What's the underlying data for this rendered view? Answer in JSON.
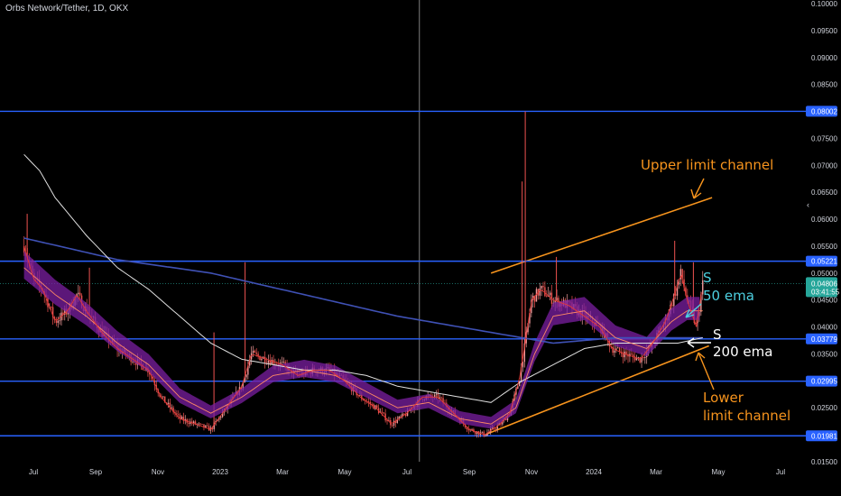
{
  "header": {
    "title": "Orbs Network/Tether, 1D, OKX"
  },
  "chart_data": {
    "type": "candlestick",
    "title": "Orbs Network/Tether, 1D, OKX",
    "ylim": [
      0.015,
      0.1
    ],
    "price_ticks": [
      "0.10000",
      "0.09500",
      "0.09000",
      "0.08500",
      "0.08000",
      "0.07500",
      "0.07000",
      "0.06500",
      "0.06000",
      "0.05500",
      "0.05000",
      "0.04500",
      "0.04000",
      "0.03500",
      "0.03000",
      "0.02500",
      "0.02000",
      "0.01500"
    ],
    "time_ticks": [
      {
        "label": "Jul",
        "t": 0.3
      },
      {
        "label": "Sep",
        "t": 2.3
      },
      {
        "label": "Nov",
        "t": 4.3
      },
      {
        "label": "2023",
        "t": 6.3
      },
      {
        "label": "Mar",
        "t": 8.3
      },
      {
        "label": "May",
        "t": 10.3
      },
      {
        "label": "Jul",
        "t": 12.3
      },
      {
        "label": "Sep",
        "t": 14.3
      },
      {
        "label": "Nov",
        "t": 16.3
      },
      {
        "label": "2024",
        "t": 18.3
      },
      {
        "label": "Mar",
        "t": 20.3
      },
      {
        "label": "May",
        "t": 22.3
      },
      {
        "label": "Jul",
        "t": 24.3
      }
    ],
    "horizontal_levels": [
      {
        "price": 0.08002,
        "label": "0.08002",
        "color": "#2962ff"
      },
      {
        "price": 0.05221,
        "label": "0.05221",
        "color": "#2962ff"
      },
      {
        "price": 0.03779,
        "label": "0.03779",
        "color": "#2962ff"
      },
      {
        "price": 0.02995,
        "label": "0.02995",
        "color": "#2962ff"
      },
      {
        "price": 0.01981,
        "label": "0.01981",
        "color": "#2962ff"
      }
    ],
    "current_price": {
      "price": 0.04806,
      "label": "0.04806",
      "countdown": "03:41:55",
      "color": "#26a69a"
    },
    "price_path": [
      [
        0,
        0.055
      ],
      [
        0.3,
        0.049
      ],
      [
        0.6,
        0.047
      ],
      [
        1.0,
        0.041
      ],
      [
        1.4,
        0.043
      ],
      [
        1.7,
        0.046
      ],
      [
        2.0,
        0.043
      ],
      [
        2.5,
        0.039
      ],
      [
        3.0,
        0.036
      ],
      [
        3.5,
        0.034
      ],
      [
        4.0,
        0.032
      ],
      [
        4.4,
        0.027
      ],
      [
        5.0,
        0.023
      ],
      [
        5.5,
        0.022
      ],
      [
        6.0,
        0.021
      ],
      [
        6.5,
        0.025
      ],
      [
        7.0,
        0.029
      ],
      [
        7.3,
        0.035
      ],
      [
        7.8,
        0.034
      ],
      [
        8.3,
        0.033
      ],
      [
        8.8,
        0.031
      ],
      [
        9.3,
        0.032
      ],
      [
        9.8,
        0.032
      ],
      [
        10.3,
        0.03
      ],
      [
        10.8,
        0.027
      ],
      [
        11.3,
        0.025
      ],
      [
        11.8,
        0.022
      ],
      [
        12.3,
        0.024
      ],
      [
        12.8,
        0.027
      ],
      [
        13.3,
        0.027
      ],
      [
        13.8,
        0.024
      ],
      [
        14.3,
        0.021
      ],
      [
        14.8,
        0.02
      ],
      [
        15.3,
        0.022
      ],
      [
        15.6,
        0.024
      ],
      [
        15.9,
        0.03
      ],
      [
        16.1,
        0.037
      ],
      [
        16.3,
        0.045
      ],
      [
        16.6,
        0.047
      ],
      [
        17.0,
        0.045
      ],
      [
        17.5,
        0.044
      ],
      [
        18.0,
        0.042
      ],
      [
        18.5,
        0.04
      ],
      [
        18.9,
        0.036
      ],
      [
        19.3,
        0.035
      ],
      [
        19.8,
        0.034
      ],
      [
        20.2,
        0.037
      ],
      [
        20.6,
        0.041
      ],
      [
        20.9,
        0.046
      ],
      [
        21.1,
        0.05
      ],
      [
        21.3,
        0.045
      ],
      [
        21.6,
        0.04
      ],
      [
        21.8,
        0.048
      ]
    ],
    "spikes": [
      {
        "t": 0.1,
        "high": 0.061
      },
      {
        "t": 2.1,
        "high": 0.051
      },
      {
        "t": 6.1,
        "high": 0.039
      },
      {
        "t": 7.1,
        "high": 0.052
      },
      {
        "t": 16.1,
        "high": 0.08
      },
      {
        "t": 16.0,
        "high": 0.067
      },
      {
        "t": 17.1,
        "high": 0.053
      },
      {
        "t": 20.9,
        "high": 0.056
      },
      {
        "t": 21.5,
        "high": 0.052
      }
    ],
    "ema50_path": [
      [
        0,
        0.051
      ],
      [
        1.0,
        0.046
      ],
      [
        2.0,
        0.042
      ],
      [
        3.0,
        0.037
      ],
      [
        4.0,
        0.033
      ],
      [
        5.0,
        0.027
      ],
      [
        6.0,
        0.024
      ],
      [
        7.0,
        0.027
      ],
      [
        8.0,
        0.031
      ],
      [
        9.0,
        0.032
      ],
      [
        10.0,
        0.031
      ],
      [
        11.0,
        0.028
      ],
      [
        12.0,
        0.025
      ],
      [
        13.0,
        0.026
      ],
      [
        14.0,
        0.023
      ],
      [
        15.0,
        0.022
      ],
      [
        15.8,
        0.025
      ],
      [
        16.4,
        0.035
      ],
      [
        17.0,
        0.042
      ],
      [
        18.0,
        0.043
      ],
      [
        19.0,
        0.038
      ],
      [
        20.0,
        0.036
      ],
      [
        20.8,
        0.041
      ],
      [
        21.3,
        0.043
      ],
      [
        21.8,
        0.043
      ]
    ],
    "ema200_path": [
      [
        0,
        0.072
      ],
      [
        0.5,
        0.069
      ],
      [
        1.0,
        0.064
      ],
      [
        2.0,
        0.057
      ],
      [
        3.0,
        0.051
      ],
      [
        4.0,
        0.047
      ],
      [
        5.0,
        0.042
      ],
      [
        6.0,
        0.037
      ],
      [
        7.0,
        0.034
      ],
      [
        8.0,
        0.033
      ],
      [
        9.0,
        0.032
      ],
      [
        10.0,
        0.032
      ],
      [
        11.0,
        0.031
      ],
      [
        12.0,
        0.029
      ],
      [
        13.0,
        0.028
      ],
      [
        14.0,
        0.027
      ],
      [
        15.0,
        0.026
      ],
      [
        16.0,
        0.03
      ],
      [
        17.0,
        0.033
      ],
      [
        18.0,
        0.036
      ],
      [
        19.0,
        0.037
      ],
      [
        20.0,
        0.037
      ],
      [
        21.0,
        0.037
      ],
      [
        21.8,
        0.038
      ]
    ],
    "blue_ma_path": [
      [
        0,
        0.0565
      ],
      [
        3,
        0.0525
      ],
      [
        6,
        0.05
      ],
      [
        9,
        0.046
      ],
      [
        12,
        0.042
      ],
      [
        15,
        0.039
      ],
      [
        17,
        0.037
      ],
      [
        19,
        0.038
      ],
      [
        21.8,
        0.038
      ]
    ],
    "channel_lines": [
      {
        "name": "upper",
        "from": [
          15.0,
          0.05
        ],
        "to": [
          22.1,
          0.064
        ],
        "color": "#f7941d"
      },
      {
        "name": "lower",
        "from": [
          14.8,
          0.02
        ],
        "to": [
          22.0,
          0.0365
        ],
        "color": "#f7941d"
      }
    ],
    "vertical_line_t": 12.7,
    "colors": {
      "up": "#ef9a9a",
      "down": "#ef5350",
      "ribbon": "#7b1fa2",
      "ema200": "#e0e0e0",
      "blue_ma": "#3f51b5",
      "annotation_orange": "#f7941d",
      "annotation_teal": "#4dd0e1"
    }
  },
  "annotations": {
    "upper_channel": "Upper limit channel",
    "ema50_s": "S",
    "ema50_label": "50 ema",
    "ema200_s": "S",
    "ema200_label": "200 ema",
    "lower_line1": "Lower",
    "lower_line2": "limit channel"
  }
}
